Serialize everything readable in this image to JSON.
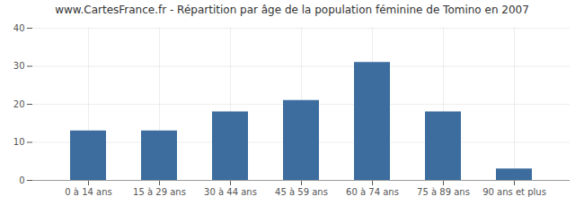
{
  "chart_data": {
    "type": "bar",
    "title": "www.CartesFrance.fr - Répartition par âge de la population féminine de Tomino en 2007",
    "categories": [
      "0 à 14 ans",
      "15 à 29 ans",
      "30 à 44 ans",
      "45 à 59 ans",
      "60 à 74 ans",
      "75 à 89 ans",
      "90 ans et plus"
    ],
    "values": [
      13,
      13,
      18,
      21,
      31,
      18,
      3
    ],
    "color": "#3d6d9e",
    "ylim": [
      0,
      40
    ],
    "yticks": [
      0,
      10,
      20,
      30,
      40
    ],
    "grid": true
  }
}
